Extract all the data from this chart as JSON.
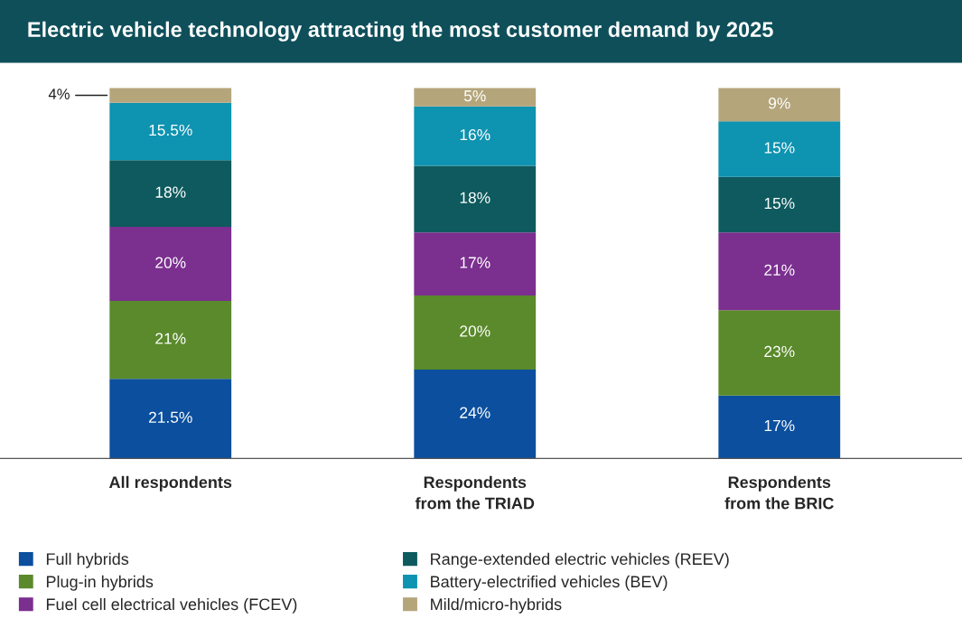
{
  "chart_data": {
    "type": "bar",
    "title": "Electric vehicle technology attracting the most customer demand by 2025",
    "categories": [
      "All respondents",
      "Respondents\nfrom the TRIAD",
      "Respondents\nfrom the BRIC"
    ],
    "stacked": true,
    "data_labels": true,
    "legend": "bottom",
    "grid": false,
    "series": [
      {
        "name": "Full hybrids",
        "color": "#0b4f9e",
        "values": [
          21.5,
          24,
          17
        ],
        "value_labels": [
          "21.5%",
          "24%",
          "17%"
        ]
      },
      {
        "name": "Plug-in hybrids",
        "color": "#5a8a2b",
        "values": [
          21,
          20,
          23
        ],
        "value_labels": [
          "21%",
          "20%",
          "23%"
        ]
      },
      {
        "name": "Fuel cell electrical vehicles (FCEV)",
        "color": "#7b2f8f",
        "values": [
          20,
          17,
          21
        ],
        "value_labels": [
          "20%",
          "17%",
          "21%"
        ]
      },
      {
        "name": "Range-extended electric vehicles (REEV)",
        "color": "#0e5a5e",
        "values": [
          18,
          18,
          15
        ],
        "value_labels": [
          "18%",
          "18%",
          "15%"
        ]
      },
      {
        "name": "Battery-electrified vehicles (BEV)",
        "color": "#0e93b0",
        "values": [
          15.5,
          16,
          15
        ],
        "value_labels": [
          "15.5%",
          "16%",
          "15%"
        ]
      },
      {
        "name": "Mild/micro-hybrids",
        "color": "#b5a57b",
        "values": [
          4,
          5,
          9
        ],
        "value_labels": [
          "4%",
          "5%",
          "9%"
        ]
      }
    ]
  }
}
